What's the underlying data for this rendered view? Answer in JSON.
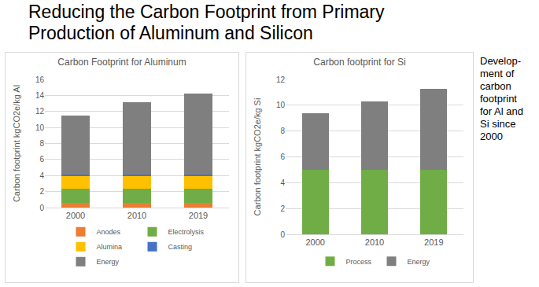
{
  "header": {
    "title_lines": [
      "Reducing the Carbon Footprint from Primary",
      "Production of Aluminum and Silicon"
    ],
    "note_lines": [
      "Develop-",
      "ment of",
      "carbon",
      "footprint",
      "for Al and",
      "Si since",
      "2000"
    ]
  },
  "chart_data": [
    {
      "type": "bar",
      "title": "Carbon Footprint for Aluminum",
      "y_label": "Carbon footprint kgCO2e/kg Al",
      "categories": [
        "2000",
        "2010",
        "2019"
      ],
      "series": [
        {
          "name": "Anodes",
          "color": "#ed7d31",
          "values": [
            0.6,
            0.6,
            0.6
          ]
        },
        {
          "name": "Electrolysis",
          "color": "#70ad47",
          "values": [
            1.8,
            1.8,
            1.8
          ]
        },
        {
          "name": "Alumina",
          "color": "#ffc000",
          "values": [
            1.5,
            1.5,
            1.5
          ]
        },
        {
          "name": "Casting",
          "color": "#4472c4",
          "values": [
            0.2,
            0.2,
            0.2
          ]
        },
        {
          "name": "Energy",
          "color": "#7f7f7f",
          "values": [
            7.35,
            9.1,
            10.15
          ]
        }
      ],
      "ylim": [
        0,
        16
      ],
      "yticks": [
        0,
        2,
        4,
        6,
        8,
        10,
        12,
        14,
        16
      ],
      "stacked": true,
      "grid": true,
      "legend": "bottom"
    },
    {
      "type": "bar",
      "title": "Carbon footprint for Si",
      "y_label": "Carbon footprint kgCO2e/kg Si",
      "categories": [
        "2000",
        "2010",
        "2019"
      ],
      "series": [
        {
          "name": "Process",
          "color": "#70ad47",
          "values": [
            5,
            5,
            5
          ]
        },
        {
          "name": "Energy",
          "color": "#7f7f7f",
          "values": [
            4.4,
            5.3,
            6.25
          ]
        }
      ],
      "ylim": [
        0,
        12
      ],
      "yticks": [
        0,
        2,
        4,
        6,
        8,
        10,
        12
      ],
      "stacked": true,
      "grid": true,
      "legend": "bottom"
    }
  ]
}
